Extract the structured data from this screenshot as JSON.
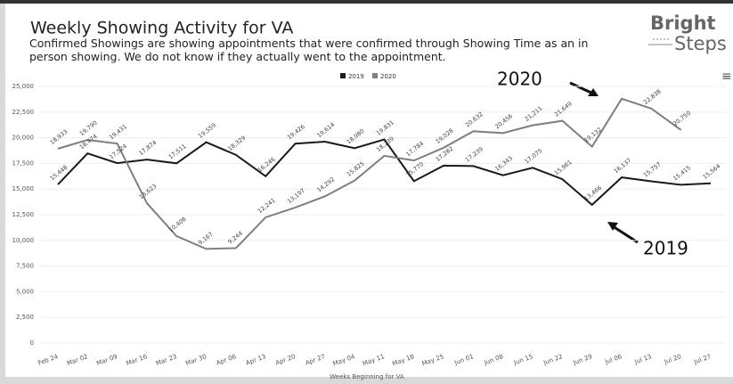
{
  "header": {
    "title": "Weekly Showing Activity for VA",
    "subtitle": "Confirmed Showings are showing appointments that were confirmed through Showing Time as an in person showing. We do not know if they actually went to the appointment.",
    "logo_top": "Bright",
    "logo_bottom": "Steps",
    "menu": "≡"
  },
  "chart_data": {
    "type": "line",
    "categories": [
      "Feb 24",
      "Mar 02",
      "Mar 09",
      "Mar 16",
      "Mar 23",
      "Mar 30",
      "Apr 06",
      "Apr 13",
      "Apr 20",
      "Apr 27",
      "May 04",
      "May 11",
      "May 18",
      "May 25",
      "Jun 01",
      "Jun 08",
      "Jun 15",
      "Jun 22",
      "Jun 29",
      "Jul 06",
      "Jul 13",
      "Jul 20",
      "Jul 27"
    ],
    "series": [
      {
        "name": "2019",
        "color": "#1a1a1a",
        "values": [
          15448,
          18474,
          17524,
          17874,
          17511,
          19559,
          18329,
          16246,
          19426,
          19614,
          18980,
          19831,
          15770,
          17282,
          17239,
          16343,
          17075,
          15961,
          13466,
          16137,
          15757,
          15415,
          15564
        ],
        "value_labels": [
          "15,448",
          "18,474",
          "17,524",
          "17,874",
          "17,511",
          "19,559",
          "18,329",
          "16,246",
          "19,426",
          "19,614",
          "18,980",
          "19,831",
          "15,770",
          "17,282",
          "17,239",
          "16,343",
          "17,075",
          "15,961",
          "13,466",
          "16,137",
          "15,757",
          "15,415",
          "15,564"
        ]
      },
      {
        "name": "2020",
        "color": "#7f7f7f",
        "values": [
          18933,
          19790,
          19431,
          13623,
          10408,
          9167,
          9244,
          12241,
          13197,
          14292,
          15825,
          18239,
          17784,
          19028,
          20632,
          20456,
          21211,
          21649,
          19132,
          23800,
          22838,
          20750,
          null
        ],
        "value_labels": [
          "18,933",
          "19,790",
          "19,431",
          "13,623",
          "10,408",
          "9,167",
          "9,244",
          "12,241",
          "13,197",
          "14,292",
          "15,825",
          "18,239",
          "17,784",
          "19,028",
          "20,632",
          "20,456",
          "21,211",
          "21,649",
          "19,132",
          null,
          "22,838",
          "20,750",
          null
        ]
      }
    ],
    "ylim": [
      0,
      25000
    ],
    "yticks": [
      0,
      {
        "value": 2500,
        "label": "2,500"
      },
      {
        "value": 5000,
        "label": "5,000"
      },
      {
        "value": 7500,
        "label": "7,500"
      },
      {
        "value": 10000,
        "label": "10,000"
      },
      {
        "value": 12500,
        "label": "12,500"
      },
      {
        "value": 15000,
        "label": "15,000"
      },
      {
        "value": 17500,
        "label": "17,500"
      },
      {
        "value": 20000,
        "label": "20,000"
      },
      {
        "value": 22500,
        "label": "22,500"
      },
      {
        "value": 25000,
        "label": "25,000"
      }
    ],
    "grid": true,
    "xlabel": "Weeks Beginning for VA",
    "annotations": [
      "2020",
      "2019"
    ]
  }
}
